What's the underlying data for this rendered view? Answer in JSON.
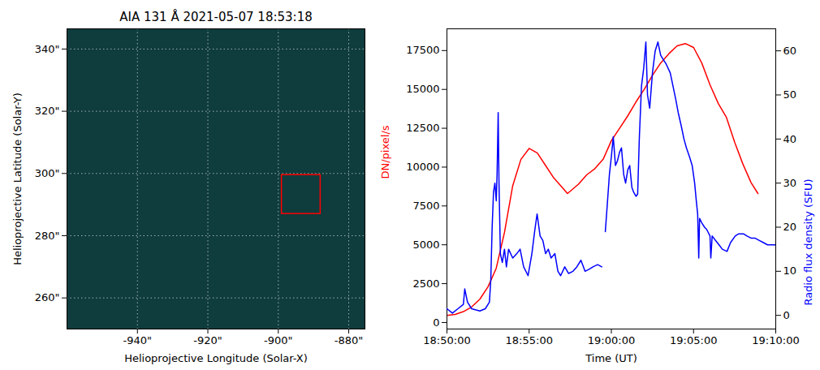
{
  "chart_data": [
    {
      "type": "image",
      "title": "AIA 131 Å 2021-05-07 18:53:18",
      "x_label": "Helioprojective Longitude (Solar-X)",
      "y_label": "Helioprojective Latitude (Solar-Y)",
      "xlim": [
        -960,
        -875.4
      ],
      "ylim": [
        250,
        346.5
      ],
      "xticks": [
        {
          "value": -940,
          "label": "-940\""
        },
        {
          "value": -920,
          "label": "-920\""
        },
        {
          "value": -900,
          "label": "-900\""
        },
        {
          "value": -880,
          "label": "-880\""
        }
      ],
      "yticks": [
        {
          "value": 260,
          "label": "260\""
        },
        {
          "value": 280,
          "label": "280\""
        },
        {
          "value": 300,
          "label": "300\""
        },
        {
          "value": 320,
          "label": "320\""
        },
        {
          "value": 340,
          "label": "340\""
        }
      ],
      "grid": true,
      "box": {
        "x": [
          -899,
          -888
        ],
        "y": [
          287,
          299.5
        ],
        "color": "red"
      }
    },
    {
      "type": "line",
      "x_label": "Time (UT)",
      "y_label": "DN/pixel/s",
      "y2_label": "Radio flux density (SFU)",
      "xlim": [
        "18:50:00",
        "19:10:00"
      ],
      "xticks": [
        "18:50:00",
        "18:55:00",
        "19:00:00",
        "19:05:00",
        "19:10:00"
      ],
      "ylim": [
        -420,
        18900
      ],
      "yticks": [
        0,
        2500,
        5000,
        7500,
        10000,
        12500,
        15000,
        17500
      ],
      "y2lim": [
        -3.1,
        65
      ],
      "y2ticks": [
        0,
        10,
        20,
        30,
        40,
        50,
        60
      ],
      "grid": false,
      "series": [
        {
          "color": "red",
          "x": [
            "18:50:00",
            "18:50:30",
            "18:51:00",
            "18:51:30",
            "18:52:00",
            "18:52:30",
            "18:53:00",
            "18:53:30",
            "18:54:00",
            "18:54:30",
            "18:55:00",
            "18:55:30",
            "18:56:00",
            "18:56:30",
            "18:57:00",
            "18:57:20",
            "18:58:00",
            "18:58:30",
            "18:59:00",
            "18:59:30",
            "19:00:00",
            "19:00:30",
            "19:01:00",
            "19:01:30",
            "19:02:00",
            "19:02:30",
            "19:03:00",
            "19:03:30",
            "19:04:00",
            "19:04:30",
            "19:05:00",
            "19:05:30",
            "19:06:00",
            "19:06:30",
            "19:07:00",
            "19:07:30",
            "19:08:00",
            "19:08:30",
            "19:08:55"
          ],
          "values": [
            450,
            520,
            700,
            1000,
            1500,
            2300,
            3500,
            5800,
            8800,
            10500,
            11200,
            10900,
            10100,
            9300,
            8700,
            8300,
            8900,
            9500,
            9900,
            10500,
            11700,
            12500,
            13300,
            14200,
            15000,
            15900,
            16700,
            17300,
            17800,
            17950,
            17700,
            16700,
            15300,
            14100,
            13200,
            11600,
            10200,
            9000,
            8300
          ]
        },
        {
          "color": "blue",
          "axis": "y2",
          "x": [
            "18:50:00",
            "18:50:20",
            "18:50:40",
            "18:51:00",
            "18:51:05",
            "18:51:15",
            "18:51:30",
            "18:52:00",
            "18:52:20",
            "18:52:35",
            "18:52:40",
            "18:52:45",
            "18:52:50",
            "18:52:55",
            "18:53:00",
            "18:53:03",
            "18:53:07",
            "18:53:10",
            "18:53:15",
            "18:53:22",
            "18:53:30",
            "18:53:37",
            "18:53:45",
            "18:54:00",
            "18:54:15",
            "18:54:27",
            "18:54:40",
            "18:54:56",
            "18:55:10",
            "18:55:20",
            "18:55:29",
            "18:55:40",
            "18:55:50",
            "18:56:00",
            "18:56:10",
            "18:56:20",
            "18:56:34",
            "18:56:45",
            "18:56:55",
            "18:57:10",
            "18:57:24",
            "18:57:40",
            "18:57:54",
            "18:58:09",
            "18:58:24",
            "18:58:40",
            "18:58:53",
            "18:59:10",
            "18:59:25",
            "18:59:30",
            "18:59:38",
            "18:59:45",
            "18:59:53",
            "19:00:00",
            "19:00:07",
            "19:00:15",
            "19:00:22",
            "19:00:30",
            "19:00:37",
            "19:00:45",
            "19:00:52",
            "19:01:00",
            "19:01:07",
            "19:01:15",
            "19:01:21",
            "19:01:30",
            "19:01:36",
            "19:01:42",
            "19:01:50",
            "19:01:58",
            "19:02:06",
            "19:02:12",
            "19:02:20",
            "19:02:30",
            "19:02:40",
            "19:02:50",
            "19:03:00",
            "19:03:10",
            "19:03:20",
            "19:03:35",
            "19:03:45",
            "19:03:55",
            "19:04:04",
            "19:04:15",
            "19:04:25",
            "19:04:34",
            "19:04:45",
            "19:04:55",
            "19:05:04",
            "19:05:10",
            "19:05:15",
            "19:05:19",
            "19:05:22",
            "19:05:30",
            "19:05:40",
            "19:05:48",
            "19:06:00",
            "19:06:03",
            "19:06:08",
            "19:06:20",
            "19:06:33",
            "19:06:45",
            "19:07:02",
            "19:07:15",
            "19:07:32",
            "19:07:45",
            "19:08:02",
            "19:08:15",
            "19:08:31",
            "19:08:45",
            "19:09:00",
            "19:09:15",
            "19:09:30",
            "19:09:45",
            "19:10:00"
          ],
          "values": [
            1.5,
            0.5,
            1.5,
            2.5,
            6,
            3,
            1.5,
            1,
            1.5,
            3,
            8,
            20,
            28,
            30,
            26,
            32,
            46,
            30,
            14,
            12,
            15,
            11,
            15,
            13,
            14,
            15,
            11,
            9,
            14,
            19,
            23,
            18,
            17,
            14,
            15,
            13,
            14,
            10,
            9,
            11,
            9.5,
            10,
            11,
            12.5,
            10,
            10.5,
            11,
            11.5,
            11,
            null,
            19,
            25,
            32,
            36,
            40.5,
            34,
            35,
            37,
            38,
            32,
            30,
            33,
            34,
            29,
            28,
            27,
            27.5,
            40,
            52,
            56,
            62,
            50,
            47,
            55,
            60,
            62,
            59,
            58,
            57,
            55,
            52,
            49,
            46,
            43,
            40,
            38,
            36,
            34,
            30,
            26,
            23,
            13,
            22,
            21,
            20,
            19.5,
            18,
            13,
            18,
            17,
            16,
            15,
            14.5,
            16.5,
            18,
            18.5,
            18.5,
            18,
            17.5,
            17.5,
            17,
            16.5,
            16,
            16,
            16
          ]
        }
      ]
    }
  ]
}
